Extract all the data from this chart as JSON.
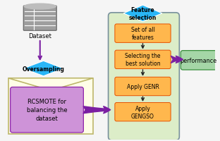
{
  "bg_color": "#f5f5f5",
  "db_text": "Dataset",
  "diamond1_color": "#29b6f6",
  "diamond1_text": "Oversampling",
  "envelope_color": "#fffde7",
  "envelope_border": "#bdb76b",
  "rcsmote_color": "#ce93d8",
  "rcsmote_text": "RCSMOTE for\nbalancing the\ndataset",
  "feature_panel_color": "#dcedc8",
  "feature_panel_border": "#90a4ae",
  "diamond2_color": "#29b6f6",
  "diamond2_text": "Feature\nselection",
  "box1_color": "#ffb74d",
  "box1_text": "Set of all\nfeatures",
  "box2_color": "#ffb74d",
  "box2_text": "Selecting the\nbest solution",
  "box3_color": "#ffb74d",
  "box3_text": "Apply GENR",
  "box4_color": "#ffb74d",
  "box4_text": "Apply\nGENGSO",
  "perf_color": "#a5d6a7",
  "perf_text": "performance",
  "arrow_color": "#7b1fa2",
  "small_arrow_color": "#212121",
  "table_color": "#9e9e9e",
  "table_line_color": "#eeeeee"
}
